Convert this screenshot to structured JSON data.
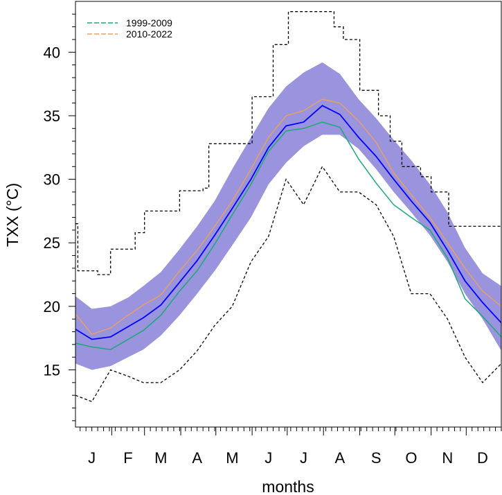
{
  "chart_data": {
    "type": "line",
    "xlabel": "months",
    "ylabel": "TXX (°C)",
    "x_tick_labels": [
      "J",
      "F",
      "M",
      "A",
      "M",
      "J",
      "J",
      "A",
      "S",
      "O",
      "N",
      "D"
    ],
    "y_ticks": [
      15,
      20,
      25,
      30,
      35,
      40
    ],
    "ylim": [
      10.5,
      44
    ],
    "xlim": [
      1,
      365
    ],
    "legend": {
      "placement": "top-left",
      "entries": [
        {
          "label": "1999-2009",
          "color": "#1aa878",
          "style": "dashed"
        },
        {
          "label": "2010-2022",
          "color": "#e8a066",
          "style": "dashed"
        }
      ]
    },
    "colors": {
      "band": "#9a93dd",
      "mean": "#0000ff",
      "period1": "#1aa878",
      "period2": "#e8a066",
      "envelope": "#000000"
    },
    "x_day": [
      1,
      15,
      31,
      46,
      59,
      74,
      90,
      105,
      120,
      135,
      151,
      166,
      181,
      196,
      212,
      227,
      243,
      258,
      273,
      288,
      304,
      319,
      334,
      349,
      365
    ],
    "series": [
      {
        "role": "band",
        "lower": [
          15.5,
          15.0,
          15.3,
          16.0,
          16.6,
          17.7,
          19.3,
          21.0,
          22.8,
          24.8,
          27.0,
          29.6,
          31.3,
          32.6,
          33.5,
          33.5,
          32.4,
          30.8,
          29.0,
          27.4,
          25.6,
          23.5,
          21.0,
          19.0,
          16.5
        ],
        "upper": [
          20.8,
          19.8,
          20.0,
          20.7,
          21.6,
          22.7,
          24.5,
          26.3,
          28.3,
          30.8,
          33.3,
          35.6,
          37.3,
          38.4,
          39.2,
          38.3,
          36.3,
          34.8,
          33.1,
          31.5,
          29.6,
          27.4,
          24.6,
          22.6,
          21.6
        ]
      },
      {
        "role": "mean",
        "values": [
          18.2,
          17.4,
          17.6,
          18.4,
          19.1,
          20.1,
          21.9,
          23.6,
          25.6,
          27.7,
          30.0,
          32.5,
          34.2,
          34.5,
          35.8,
          35.1,
          33.3,
          31.8,
          30.0,
          28.3,
          26.6,
          24.4,
          22.0,
          20.3,
          18.7
        ]
      },
      {
        "name": "1999-2009",
        "values": [
          17.1,
          16.8,
          16.6,
          17.4,
          18.1,
          19.3,
          21.2,
          22.8,
          24.9,
          27.2,
          29.6,
          32.2,
          33.8,
          34.0,
          34.5,
          34.1,
          31.6,
          29.7,
          28.0,
          27.0,
          26.0,
          23.8,
          20.6,
          19.2,
          17.6
        ]
      },
      {
        "name": "2010-2022",
        "values": [
          19.4,
          17.8,
          18.3,
          19.3,
          20.1,
          20.9,
          22.8,
          24.4,
          26.3,
          28.3,
          30.8,
          33.3,
          35.0,
          35.4,
          36.3,
          36.0,
          34.6,
          32.9,
          30.5,
          28.8,
          27.0,
          25.0,
          23.0,
          21.2,
          20.0
        ]
      },
      {
        "role": "max-envelope",
        "x_day": [
          1,
          3,
          3,
          20,
          20,
          31,
          31,
          52,
          52,
          60,
          60,
          90,
          90,
          110,
          110,
          115,
          115,
          152,
          152,
          170,
          170,
          183,
          183,
          222,
          222,
          230,
          230,
          244,
          244,
          260,
          260,
          270,
          270,
          280,
          280,
          296,
          296,
          305,
          305,
          320,
          320,
          326,
          326,
          365
        ],
        "values": [
          26.5,
          26.5,
          22.8,
          22.8,
          22.5,
          22.5,
          24.5,
          24.5,
          25.8,
          25.8,
          27.5,
          27.5,
          29.1,
          29.1,
          29.3,
          29.3,
          32.8,
          32.8,
          36.5,
          36.5,
          40.6,
          40.6,
          43.2,
          43.2,
          42.0,
          42.0,
          41.0,
          41.0,
          37.0,
          37.0,
          35.0,
          35.0,
          33.0,
          33.0,
          31.0,
          31.0,
          30.2,
          30.2,
          29.0,
          29.0,
          26.3,
          26.3,
          26.3,
          26.3
        ]
      },
      {
        "role": "min-envelope",
        "values": [
          13.0,
          12.5,
          15.0,
          14.5,
          14.0,
          14.0,
          15.0,
          16.5,
          18.5,
          20.0,
          23.5,
          25.5,
          30.0,
          28.0,
          31.0,
          29.0,
          29.0,
          28.0,
          25.5,
          21.0,
          21.0,
          19.0,
          16.0,
          14.0,
          15.5
        ]
      }
    ]
  }
}
